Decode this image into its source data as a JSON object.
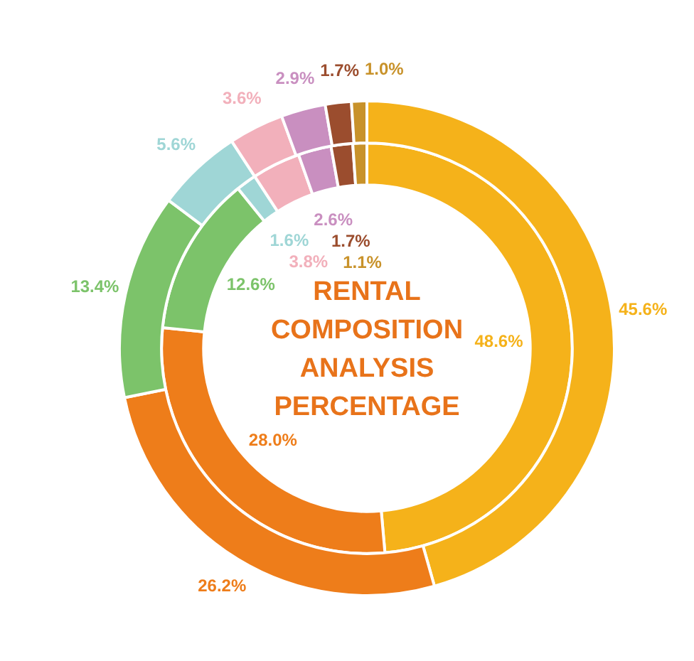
{
  "chart_data": {
    "type": "donut",
    "title": "RENTAL COMPOSITION ANALYSIS PERCENTAGE",
    "categories": [
      null,
      null,
      null,
      null,
      null,
      null,
      null,
      null
    ],
    "series": [
      {
        "values": [
          45.6,
          26.2,
          13.4,
          5.6,
          3.6,
          2.9,
          1.7,
          1.0
        ],
        "colors": [
          "#f5b21a",
          "#ee7d1a",
          "#7cc36a",
          "#9fd6d6",
          "#f2b0bb",
          "#c98fc0",
          "#9b4d2e",
          "#c8922a"
        ],
        "value_labels": [
          "45.6%",
          "26.2%",
          "13.4%",
          "5.6%",
          "3.6%",
          "2.9%",
          "1.7%",
          "1.0%"
        ]
      },
      {
        "values": [
          48.6,
          28.0,
          12.6,
          1.6,
          3.8,
          2.6,
          1.7,
          1.1
        ],
        "colors": [
          "#f5b21a",
          "#ee7d1a",
          "#7cc36a",
          "#9fd6d6",
          "#f2b0bb",
          "#c98fc0",
          "#9b4d2e",
          "#c8922a"
        ],
        "value_labels": [
          "48.6%",
          "28.0%",
          "12.6%",
          "1.6%",
          "3.8%",
          "2.6%",
          "1.7%",
          "1.1%"
        ]
      }
    ]
  }
}
